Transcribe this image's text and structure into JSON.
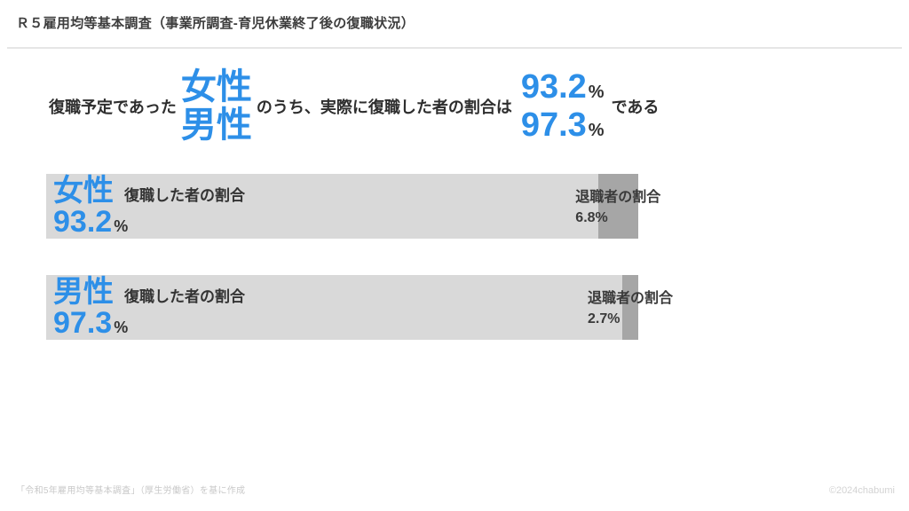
{
  "header": {
    "title": "Ｒ５雇用均等基本調査（事業所調査-育児休業終了後の復職状況）"
  },
  "statement": {
    "prefix": "復職予定であった",
    "genders": [
      "女性",
      "男性"
    ],
    "middle": "のうち、実際に復職した者の割合は",
    "values": [
      {
        "number": "93.2",
        "unit": "%"
      },
      {
        "number": "97.3",
        "unit": "%"
      }
    ],
    "suffix": "である"
  },
  "bars": [
    {
      "gender": "女性",
      "label": "復職した者の割合",
      "value": "93.2",
      "unit": "%",
      "retire_label": "退職者の割合",
      "retire_value": "6.8%"
    },
    {
      "gender": "男性",
      "label": "復職した者の割合",
      "value": "97.3",
      "unit": "%",
      "retire_label": "退職者の割合",
      "retire_value": "2.7%"
    }
  ],
  "footer": {
    "source": "「令和5年雇用均等基本調査」（厚生労働省）を基に作成",
    "watermark": "©2024chabumi"
  },
  "colors": {
    "accent_blue": "#2D8FE8",
    "bar_light": "#D9D9D9",
    "bar_dark": "#A6A6A6",
    "text_dark": "#333333"
  },
  "chart_data": {
    "type": "bar",
    "orientation": "horizontal",
    "stacked": true,
    "title": "Ｒ５雇用均等基本調査（事業所調査-育児休業終了後の復職状況）",
    "categories": [
      "女性",
      "男性"
    ],
    "series": [
      {
        "name": "復職した者の割合",
        "values": [
          93.2,
          97.3
        ]
      },
      {
        "name": "退職者の割合",
        "values": [
          6.8,
          2.7
        ]
      }
    ],
    "unit": "%",
    "xlim": [
      0,
      100
    ],
    "grid": false,
    "legend": false
  }
}
